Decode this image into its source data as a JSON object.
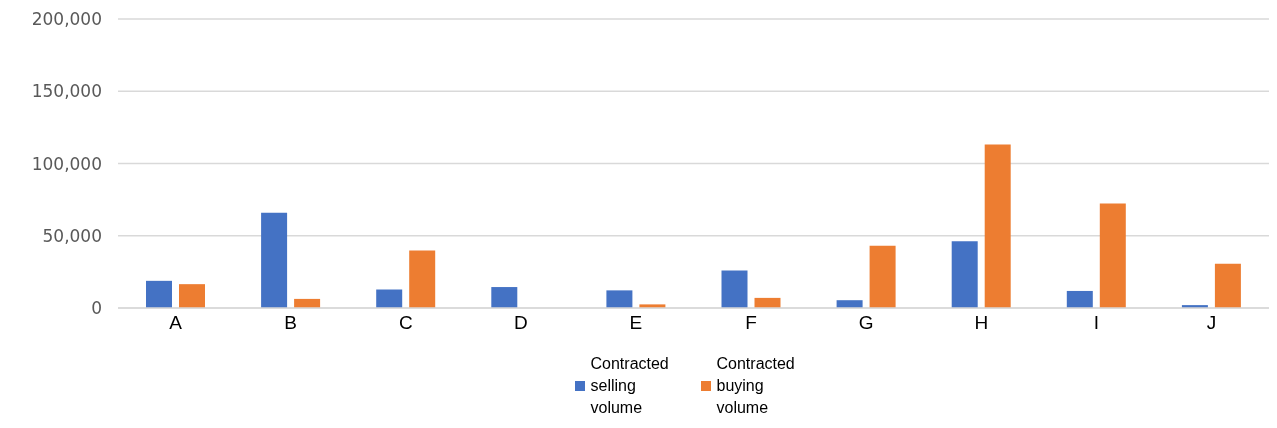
{
  "chart_data": {
    "type": "bar",
    "categories": [
      "A",
      "B",
      "C",
      "D",
      "E",
      "F",
      "G",
      "H",
      "I",
      "J"
    ],
    "series": [
      {
        "name": "Contracted selling volume",
        "color": "#4472c4",
        "values": [
          18800,
          65900,
          12800,
          14500,
          12200,
          25900,
          5400,
          46200,
          11800,
          2000
        ]
      },
      {
        "name": "Contracted buying volume",
        "color": "#ed7d31",
        "values": [
          16500,
          6300,
          39800,
          0,
          2500,
          7000,
          43100,
          113200,
          72400,
          30700
        ]
      }
    ],
    "ylim": [
      0,
      200000
    ],
    "yticks": [
      0,
      {
        "value": 50000,
        "label": "50,000"
      },
      {
        "value": 100000,
        "label": "100,000"
      },
      {
        "value": 150000,
        "label": "150,000"
      },
      {
        "value": 200000,
        "label": "200,000"
      }
    ],
    "grid": "y",
    "legend": "bottom"
  }
}
